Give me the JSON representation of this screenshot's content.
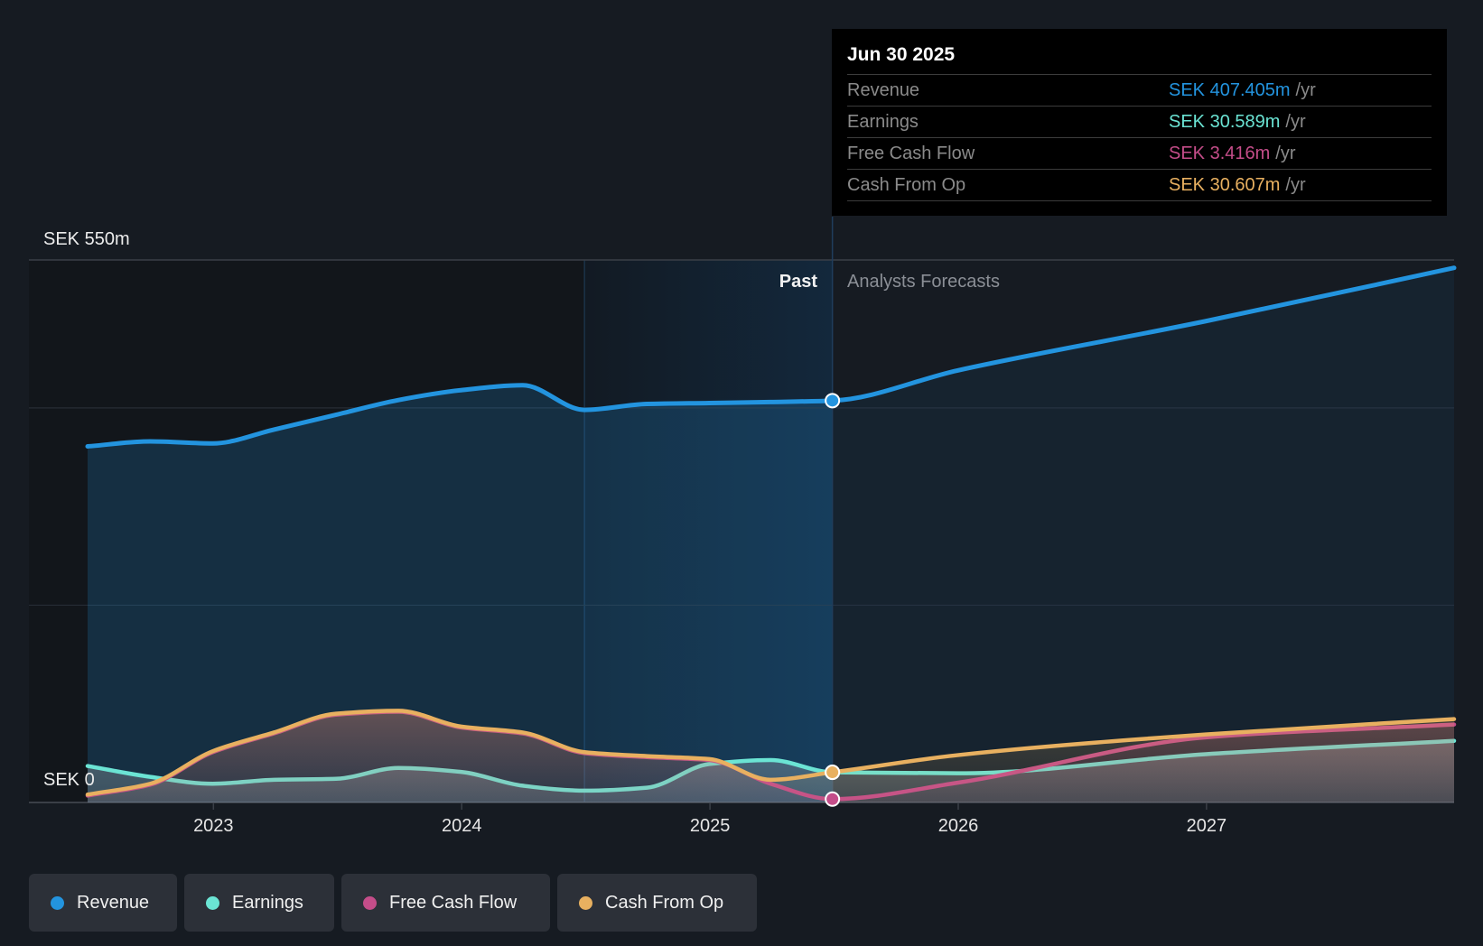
{
  "tooltip": {
    "date": "Jun 30 2025",
    "rows": [
      {
        "label": "Revenue",
        "value": "SEK 407.405m",
        "unit": "/yr",
        "color": "#2394df"
      },
      {
        "label": "Earnings",
        "value": "SEK 30.589m",
        "unit": "/yr",
        "color": "#6be4d4"
      },
      {
        "label": "Free Cash Flow",
        "value": "SEK 3.416m",
        "unit": "/yr",
        "color": "#c44d89"
      },
      {
        "label": "Cash From Op",
        "value": "SEK 30.607m",
        "unit": "/yr",
        "color": "#e8b060"
      }
    ]
  },
  "labels": {
    "past": "Past",
    "forecast": "Analysts Forecasts"
  },
  "legend": [
    {
      "label": "Revenue",
      "color": "#2394df"
    },
    {
      "label": "Earnings",
      "color": "#6be4d4"
    },
    {
      "label": "Free Cash Flow",
      "color": "#c44d89"
    },
    {
      "label": "Cash From Op",
      "color": "#e8b060"
    }
  ],
  "chart_data": {
    "type": "area",
    "title": "",
    "xlabel": "",
    "ylabel": "",
    "currency": "SEK",
    "y_axis": {
      "min": 0,
      "max": 550,
      "unit": "m",
      "top_label": "SEK 550m",
      "bottom_label": "SEK 0",
      "gridlines": [
        0,
        200,
        400,
        550
      ]
    },
    "x_axis": {
      "range": [
        "2022-06-30",
        "2027-12-31"
      ],
      "ticks": [
        "2023",
        "2024",
        "2025",
        "2026",
        "2027"
      ]
    },
    "past_region": {
      "start": "2024-06-30",
      "end": "2025-06-30"
    },
    "forecast_start": "2025-06-30",
    "highlight_date": "2025-06-30",
    "legend_position": "bottom-left",
    "x": [
      "2022-06-30",
      "2022-09-30",
      "2022-12-31",
      "2023-03-31",
      "2023-06-30",
      "2023-09-30",
      "2023-12-31",
      "2024-03-31",
      "2024-06-30",
      "2024-09-30",
      "2024-12-31",
      "2025-03-31",
      "2025-06-30",
      "2025-12-31",
      "2026-12-31",
      "2027-12-31"
    ],
    "series": [
      {
        "name": "Revenue",
        "key": "revenue",
        "color": "#2394df",
        "values": [
          361,
          366,
          364,
          378,
          393,
          408,
          418,
          423,
          398,
          404,
          405,
          406,
          407.405,
          438,
          488,
          542
        ]
      },
      {
        "name": "Earnings",
        "key": "earnings",
        "color": "#6be4d4",
        "values": [
          37,
          26,
          19,
          23,
          24,
          35,
          31,
          17,
          12,
          15,
          39,
          43,
          30.589,
          29.6,
          49,
          62.5
        ]
      },
      {
        "name": "Free Cash Flow",
        "key": "fcf",
        "color": "#c44d89",
        "values": [
          7,
          18,
          51,
          70,
          89,
          92,
          76,
          70,
          50,
          46,
          43,
          19,
          3.416,
          20,
          66,
          79
        ]
      },
      {
        "name": "Cash From Op",
        "key": "cfo",
        "color": "#e8b060",
        "values": [
          8,
          19,
          52,
          71,
          90,
          93,
          77,
          71,
          51,
          47,
          44,
          23,
          30.607,
          48,
          69,
          84.5
        ]
      }
    ]
  }
}
